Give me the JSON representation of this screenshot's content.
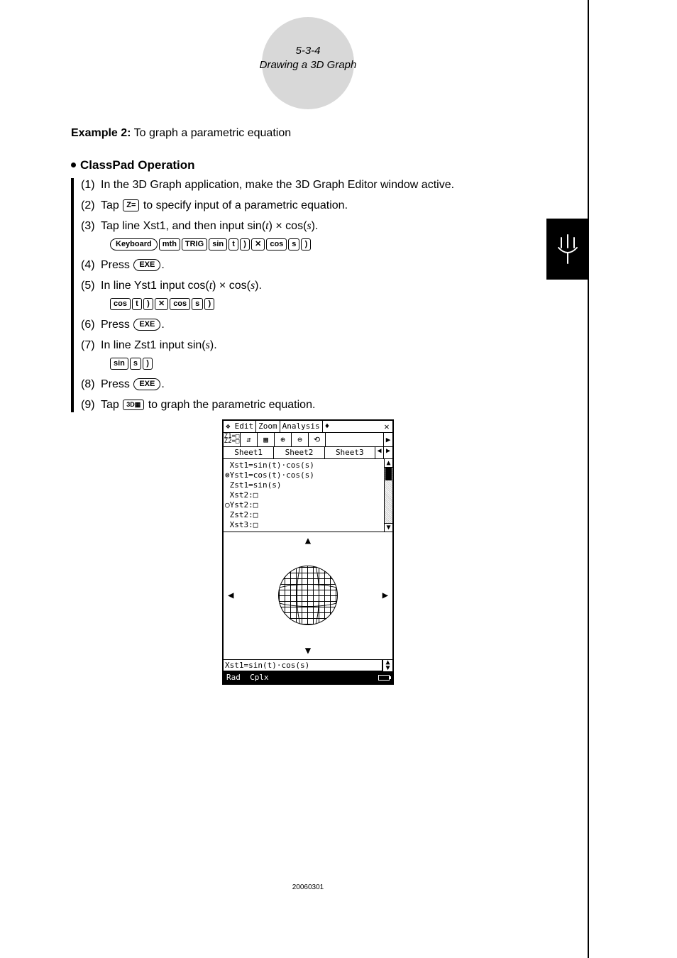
{
  "header": {
    "section_number": "5-3-4",
    "section_title": "Drawing a 3D Graph"
  },
  "example": {
    "label": "Example 2:",
    "text": "To graph a parametric equation"
  },
  "operation_title": "ClassPad Operation",
  "steps": [
    {
      "n": "(1)",
      "html": "In the 3D Graph application, make the 3D Graph Editor window active."
    },
    {
      "n": "(2)",
      "html": "Tap <span class='key'>Z=</span> to specify input of a parametric equation."
    },
    {
      "n": "(3)",
      "html": "Tap line Xst1, and then input sin(<span class='mathvar'>t</span>) × cos(<span class='mathvar'>s</span>)."
    },
    {
      "n": "",
      "keys": [
        "Keyboard",
        "mth",
        "TRIG",
        "sin",
        "t",
        ")",
        "✕",
        "cos",
        "s",
        ")"
      ],
      "keyStyles": [
        "oval",
        "",
        "",
        "",
        "",
        "",
        "",
        "",
        "",
        ""
      ]
    },
    {
      "n": "(4)",
      "html": "Press <span class='key oval'>EXE</span>."
    },
    {
      "n": "(5)",
      "html": "In line Yst1 input cos(<span class='mathvar'>t</span>) × cos(<span class='mathvar'>s</span>)."
    },
    {
      "n": "",
      "keys": [
        "cos",
        "t",
        ")",
        "✕",
        "cos",
        "s",
        ")"
      ]
    },
    {
      "n": "(6)",
      "html": "Press <span class='key oval'>EXE</span>."
    },
    {
      "n": "(7)",
      "html": "In line Zst1 input sin(<span class='mathvar'>s</span>)."
    },
    {
      "n": "",
      "keys": [
        "sin",
        "s",
        ")"
      ]
    },
    {
      "n": "(8)",
      "html": "Press <span class='key oval'>EXE</span>."
    },
    {
      "n": "(9)",
      "html": "Tap <span class='key' style='font-size:9px;'>3D▦</span> to graph the parametric equation."
    }
  ],
  "calc": {
    "menus": [
      "❖",
      "Edit",
      "Zoom",
      "Analysis",
      "♦"
    ],
    "close": "✕",
    "toolbar_first_top": "Z1=□",
    "toolbar_first_bot": "Z2=□",
    "toolbar": [
      "⇵",
      "▦",
      "⊕",
      "⊖",
      "⟲"
    ],
    "toolbar_more": "▶",
    "tabs": [
      "Sheet1",
      "Sheet2",
      "Sheet3"
    ],
    "tab_left": "◀",
    "tab_right": "▶",
    "editor_text": " Xst1=sin(t)·cos(s)\n⊗Yst1=cos(t)·cos(s)\n Zst1=sin(s)\n Xst2:□\n○Yst2:□\n Zst2:□\n Xst3:□",
    "status_text": "Xst1=sin(t)·cos(s)",
    "bottom_left": "Rad",
    "bottom_mid": "Cplx"
  },
  "footer_code": "20060301"
}
